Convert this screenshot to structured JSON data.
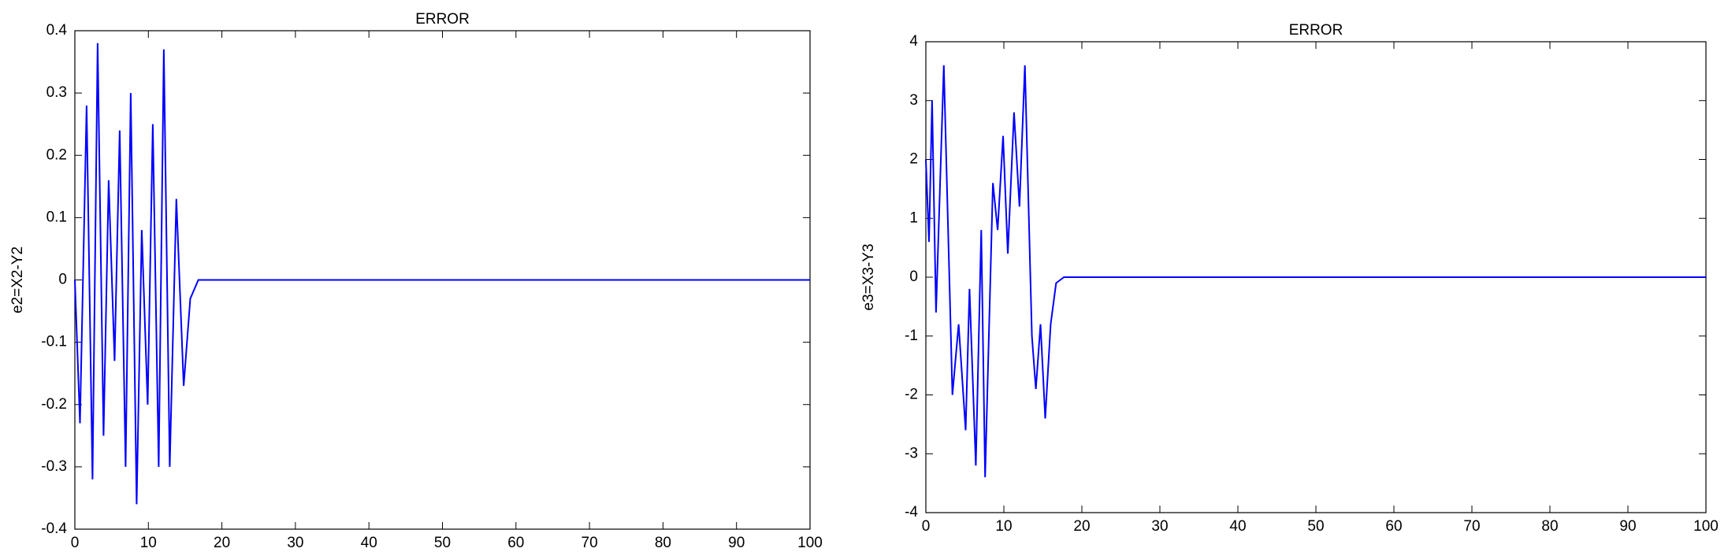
{
  "chart_data": [
    {
      "type": "line",
      "title": "ERROR",
      "y_label": "e2=X2-Y2",
      "xlim": [
        0,
        100
      ],
      "xticks": [
        0,
        10,
        20,
        30,
        40,
        50,
        60,
        70,
        80,
        90,
        100
      ],
      "ylim": [
        -0.4,
        0.4
      ],
      "yticks": [
        -0.4,
        -0.3,
        -0.2,
        -0.1,
        0,
        0.1,
        0.2,
        0.3,
        0.4
      ],
      "x": [
        0,
        0.7,
        1.6,
        2.4,
        3.1,
        3.9,
        4.6,
        5.4,
        6.1,
        6.9,
        7.6,
        8.4,
        9.1,
        9.9,
        10.6,
        11.4,
        12.1,
        12.9,
        13.8,
        14.8,
        15.7,
        16.8,
        20,
        100
      ],
      "series": [
        {
          "color": "#0000ff",
          "values": [
            0,
            -0.23,
            0.28,
            -0.32,
            0.38,
            -0.25,
            0.16,
            -0.13,
            0.24,
            -0.3,
            0.3,
            -0.36,
            0.08,
            -0.2,
            0.25,
            -0.3,
            0.37,
            -0.3,
            0.13,
            -0.17,
            -0.03,
            0,
            0,
            0
          ]
        }
      ]
    },
    {
      "type": "line",
      "title": "ERROR",
      "y_label": "e3=X3-Y3",
      "xlim": [
        0,
        100
      ],
      "xticks": [
        0,
        10,
        20,
        30,
        40,
        50,
        60,
        70,
        80,
        90,
        100
      ],
      "ylim": [
        -4,
        4
      ],
      "yticks": [
        -4,
        -3,
        -2,
        -1,
        0,
        1,
        2,
        3,
        4
      ],
      "x": [
        0,
        0.4,
        0.8,
        1.3,
        2.3,
        3.4,
        4.2,
        5.1,
        5.6,
        6.4,
        7.1,
        7.6,
        8.6,
        9.2,
        9.9,
        10.5,
        11.3,
        12.0,
        12.7,
        13.6,
        14.1,
        14.7,
        15.3,
        16.0,
        16.7,
        17.7,
        100
      ],
      "series": [
        {
          "color": "#0000ff",
          "values": [
            2,
            0.6,
            3.0,
            -0.6,
            3.6,
            -2.0,
            -0.8,
            -2.6,
            -0.2,
            -3.2,
            0.8,
            -3.4,
            1.6,
            0.8,
            2.4,
            0.4,
            2.8,
            1.2,
            3.6,
            -1.0,
            -1.9,
            -0.8,
            -2.4,
            -0.8,
            -0.1,
            0,
            0
          ]
        }
      ]
    }
  ]
}
